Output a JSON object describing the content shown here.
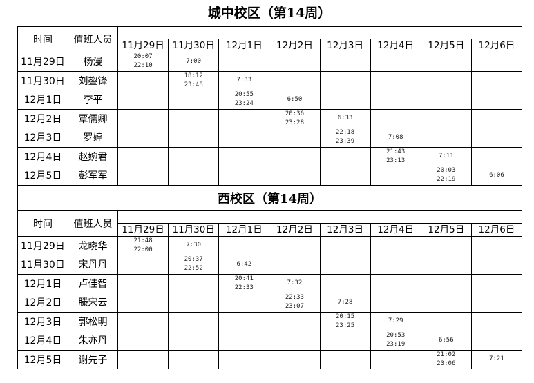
{
  "sections": [
    {
      "title": "城中校区（第14周）",
      "header": {
        "date_label": "时间",
        "person_label": "值班人员",
        "dates": [
          "11月29日",
          "11月30日",
          "12月1日",
          "12月2日",
          "12月3日",
          "12月4日",
          "12月5日",
          "12月6日"
        ]
      },
      "rows": [
        {
          "date": "11月29日",
          "person": "杨漫",
          "cells": [
            "20:07\n22:10",
            "7:00",
            "",
            "",
            "",
            "",
            "",
            ""
          ]
        },
        {
          "date": "11月30日",
          "person": "刘鋆锋",
          "cells": [
            "",
            "18:12\n23:48",
            "7:33",
            "",
            "",
            "",
            "",
            ""
          ]
        },
        {
          "date": "12月1日",
          "person": "李平",
          "cells": [
            "",
            "",
            "20:55\n23:24",
            "6:50",
            "",
            "",
            "",
            ""
          ]
        },
        {
          "date": "12月2日",
          "person": "覃儒卿",
          "cells": [
            "",
            "",
            "",
            "20:36\n23:28",
            "6:33",
            "",
            "",
            ""
          ]
        },
        {
          "date": "12月3日",
          "person": "罗婷",
          "cells": [
            "",
            "",
            "",
            "",
            "22:18\n23:39",
            "7:08",
            "",
            ""
          ]
        },
        {
          "date": "12月4日",
          "person": "赵婉君",
          "cells": [
            "",
            "",
            "",
            "",
            "",
            "21:43\n23:13",
            "7:11",
            ""
          ]
        },
        {
          "date": "12月5日",
          "person": "彭军军",
          "cells": [
            "",
            "",
            "",
            "",
            "",
            "",
            "20:03\n22:19",
            "6:06"
          ]
        }
      ]
    },
    {
      "title": "西校区（第14周）",
      "header": {
        "date_label": "时间",
        "person_label": "值班人员",
        "dates": [
          "11月29日",
          "11月30日",
          "12月1日",
          "12月2日",
          "12月3日",
          "12月4日",
          "12月5日",
          "12月6日"
        ]
      },
      "rows": [
        {
          "date": "11月29日",
          "person": "龙晓华",
          "cells": [
            "21:48\n22:00",
            "7:30",
            "",
            "",
            "",
            "",
            "",
            ""
          ]
        },
        {
          "date": "11月30日",
          "person": "宋丹丹",
          "cells": [
            "",
            "20:37\n22:52",
            "6:42",
            "",
            "",
            "",
            "",
            ""
          ]
        },
        {
          "date": "12月1日",
          "person": "卢佳智",
          "cells": [
            "",
            "",
            "20:41\n22:33",
            "7:32",
            "",
            "",
            "",
            ""
          ]
        },
        {
          "date": "12月2日",
          "person": "滕宋云",
          "cells": [
            "",
            "",
            "",
            "22:33\n23:07",
            "7:28",
            "",
            "",
            ""
          ]
        },
        {
          "date": "12月3日",
          "person": "郭松明",
          "cells": [
            "",
            "",
            "",
            "",
            "20:15\n23:25",
            "7:29",
            "",
            ""
          ]
        },
        {
          "date": "12月4日",
          "person": "朱亦丹",
          "cells": [
            "",
            "",
            "",
            "",
            "",
            "20:53\n23:19",
            "6:56",
            ""
          ]
        },
        {
          "date": "12月5日",
          "person": "谢先子",
          "cells": [
            "",
            "",
            "",
            "",
            "",
            "",
            "21:02\n23:06",
            "7:21"
          ]
        }
      ]
    }
  ]
}
